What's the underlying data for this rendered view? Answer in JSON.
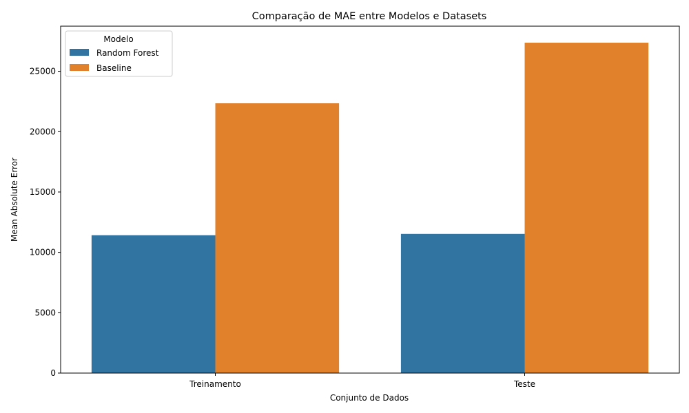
{
  "chart_data": {
    "type": "bar",
    "title": "Comparação de MAE entre Modelos e Datasets",
    "xlabel": "Conjunto de Dados",
    "ylabel": "Mean Absolute Error",
    "categories": [
      "Treinamento",
      "Teste"
    ],
    "series": [
      {
        "name": "Random Forest",
        "color": "#3274a1",
        "values": [
          11420,
          11530
        ]
      },
      {
        "name": "Baseline",
        "color": "#e1812c",
        "values": [
          22350,
          27370
        ]
      }
    ],
    "ylim": [
      0,
      28740
    ],
    "yticks": [
      0,
      5000,
      10000,
      15000,
      20000,
      25000
    ],
    "grid": false,
    "legend": {
      "title": "Modelo",
      "position": "top-left"
    }
  }
}
